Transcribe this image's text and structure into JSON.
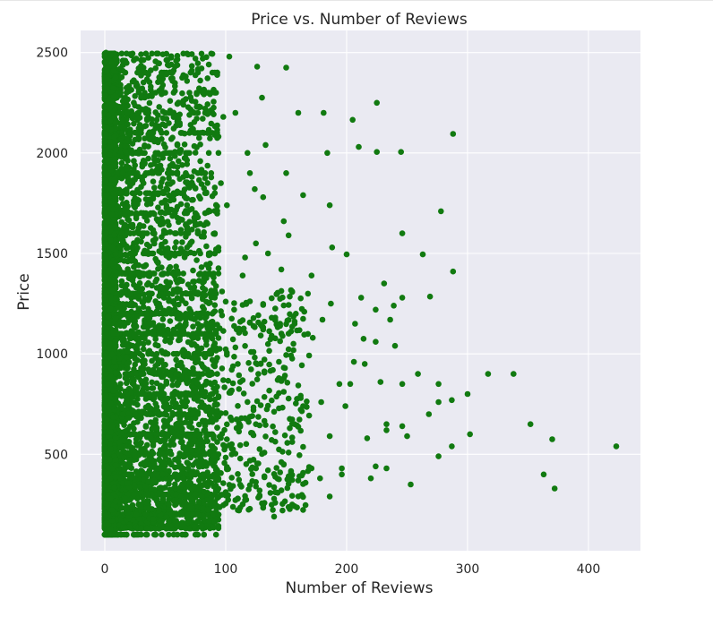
{
  "chart_data": {
    "type": "scatter",
    "title": "Price vs. Number of Reviews",
    "xlabel": "Number of Reviews",
    "ylabel": "Price",
    "xlim": [
      -20,
      443
    ],
    "ylim": [
      20,
      2610
    ],
    "xticks": [
      0,
      100,
      200,
      300,
      400
    ],
    "yticks": [
      500,
      1000,
      1500,
      2000,
      2500
    ],
    "grid": true,
    "style": "seaborn-darkgrid",
    "marker_color": "#117a10",
    "background_color": "#eaeaf2",
    "series": [
      {
        "points": [
          [
            423,
            540
          ],
          [
            372,
            330
          ],
          [
            370,
            575
          ],
          [
            363,
            400
          ],
          [
            352,
            650
          ],
          [
            338,
            900
          ],
          [
            317,
            900
          ],
          [
            302,
            600
          ],
          [
            300,
            800
          ],
          [
            288,
            2095
          ],
          [
            288,
            1410
          ],
          [
            287,
            770
          ],
          [
            287,
            540
          ],
          [
            278,
            1710
          ],
          [
            276,
            850
          ],
          [
            276,
            760
          ],
          [
            276,
            490
          ],
          [
            269,
            1285
          ],
          [
            268,
            700
          ],
          [
            263,
            1495
          ],
          [
            259,
            900
          ],
          [
            253,
            350
          ],
          [
            250,
            590
          ],
          [
            246,
            1600
          ],
          [
            246,
            1280
          ],
          [
            246,
            850
          ],
          [
            246,
            640
          ],
          [
            245,
            2005
          ],
          [
            240,
            1040
          ],
          [
            239,
            1240
          ],
          [
            236,
            1170
          ],
          [
            233,
            650
          ],
          [
            233,
            430
          ],
          [
            233,
            620
          ],
          [
            231,
            1350
          ],
          [
            228,
            860
          ],
          [
            225,
            2250
          ],
          [
            225,
            2005
          ],
          [
            224,
            1220
          ],
          [
            224,
            1060
          ],
          [
            224,
            440
          ],
          [
            220,
            380
          ],
          [
            217,
            580
          ],
          [
            215,
            950
          ],
          [
            214,
            1075
          ],
          [
            212,
            1280
          ],
          [
            210,
            2030
          ],
          [
            207,
            1150
          ],
          [
            206,
            960
          ],
          [
            205,
            2165
          ],
          [
            203,
            850
          ],
          [
            200,
            1495
          ],
          [
            199,
            740
          ],
          [
            196,
            430
          ],
          [
            196,
            400
          ],
          [
            194,
            850
          ],
          [
            188,
            1530
          ],
          [
            187,
            1250
          ],
          [
            186,
            1740
          ],
          [
            186,
            590
          ],
          [
            186,
            290
          ],
          [
            184,
            2000
          ],
          [
            181,
            2200
          ],
          [
            180,
            1170
          ],
          [
            179,
            760
          ],
          [
            178,
            380
          ],
          [
            172,
            1080
          ],
          [
            171,
            1390
          ],
          [
            171,
            430
          ],
          [
            168,
            1300
          ],
          [
            165,
            1210
          ],
          [
            164,
            1790
          ],
          [
            162,
            780
          ],
          [
            160,
            2200
          ],
          [
            158,
            1200
          ],
          [
            156,
            1050
          ],
          [
            155,
            250
          ],
          [
            152,
            1590
          ],
          [
            150,
            2425
          ],
          [
            150,
            1900
          ],
          [
            148,
            1660
          ],
          [
            146,
            1420
          ],
          [
            145,
            1150
          ],
          [
            143,
            870
          ],
          [
            141,
            610
          ],
          [
            140,
            190
          ],
          [
            138,
            1180
          ],
          [
            135,
            1500
          ],
          [
            133,
            2040
          ],
          [
            131,
            1780
          ],
          [
            130,
            2275
          ],
          [
            129,
            950
          ],
          [
            128,
            320
          ],
          [
            126,
            2430
          ],
          [
            125,
            1550
          ],
          [
            124,
            1820
          ],
          [
            123,
            720
          ],
          [
            120,
            1900
          ],
          [
            118,
            2000
          ],
          [
            116,
            1480
          ],
          [
            114,
            1390
          ],
          [
            112,
            1160
          ],
          [
            110,
            950
          ],
          [
            110,
            280
          ],
          [
            108,
            2200
          ],
          [
            107,
            1220
          ],
          [
            105,
            670
          ],
          [
            103,
            2480
          ],
          [
            101,
            1740
          ],
          [
            100,
            540
          ],
          [
            98,
            2180
          ],
          [
            96,
            1850
          ]
        ]
      }
    ]
  }
}
